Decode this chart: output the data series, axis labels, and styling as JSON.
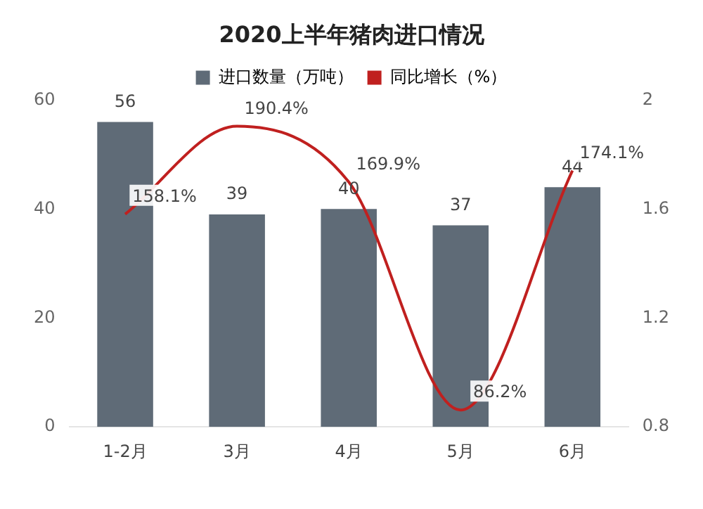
{
  "chart_data": {
    "type": "bar",
    "title": "2020上半年猪肉进口情况",
    "categories": [
      "1-2月",
      "3月",
      "4月",
      "5月",
      "6月"
    ],
    "series": [
      {
        "name": "进口数量（万吨）",
        "color": "#5f6b77",
        "values": [
          56,
          39,
          40,
          37,
          44
        ],
        "value_labels": [
          "56",
          "39",
          "40",
          "37",
          "44"
        ]
      },
      {
        "name": "同比增长（%）",
        "type": "line",
        "axis": "y2",
        "color": "#c0201f",
        "values": [
          1.581,
          1.904,
          1.699,
          0.862,
          1.741
        ],
        "value_labels": [
          "158.1%",
          "190.4%",
          "169.9%",
          "86.2%",
          "174.1%"
        ],
        "marker": "none"
      }
    ],
    "ylim": [
      0,
      60
    ],
    "yticks": [
      0,
      20,
      40,
      60
    ],
    "y2lim": [
      0.8,
      2
    ],
    "y2ticks": [
      0.8,
      1.2,
      1.6,
      2
    ],
    "grid": false,
    "legend": "top"
  }
}
